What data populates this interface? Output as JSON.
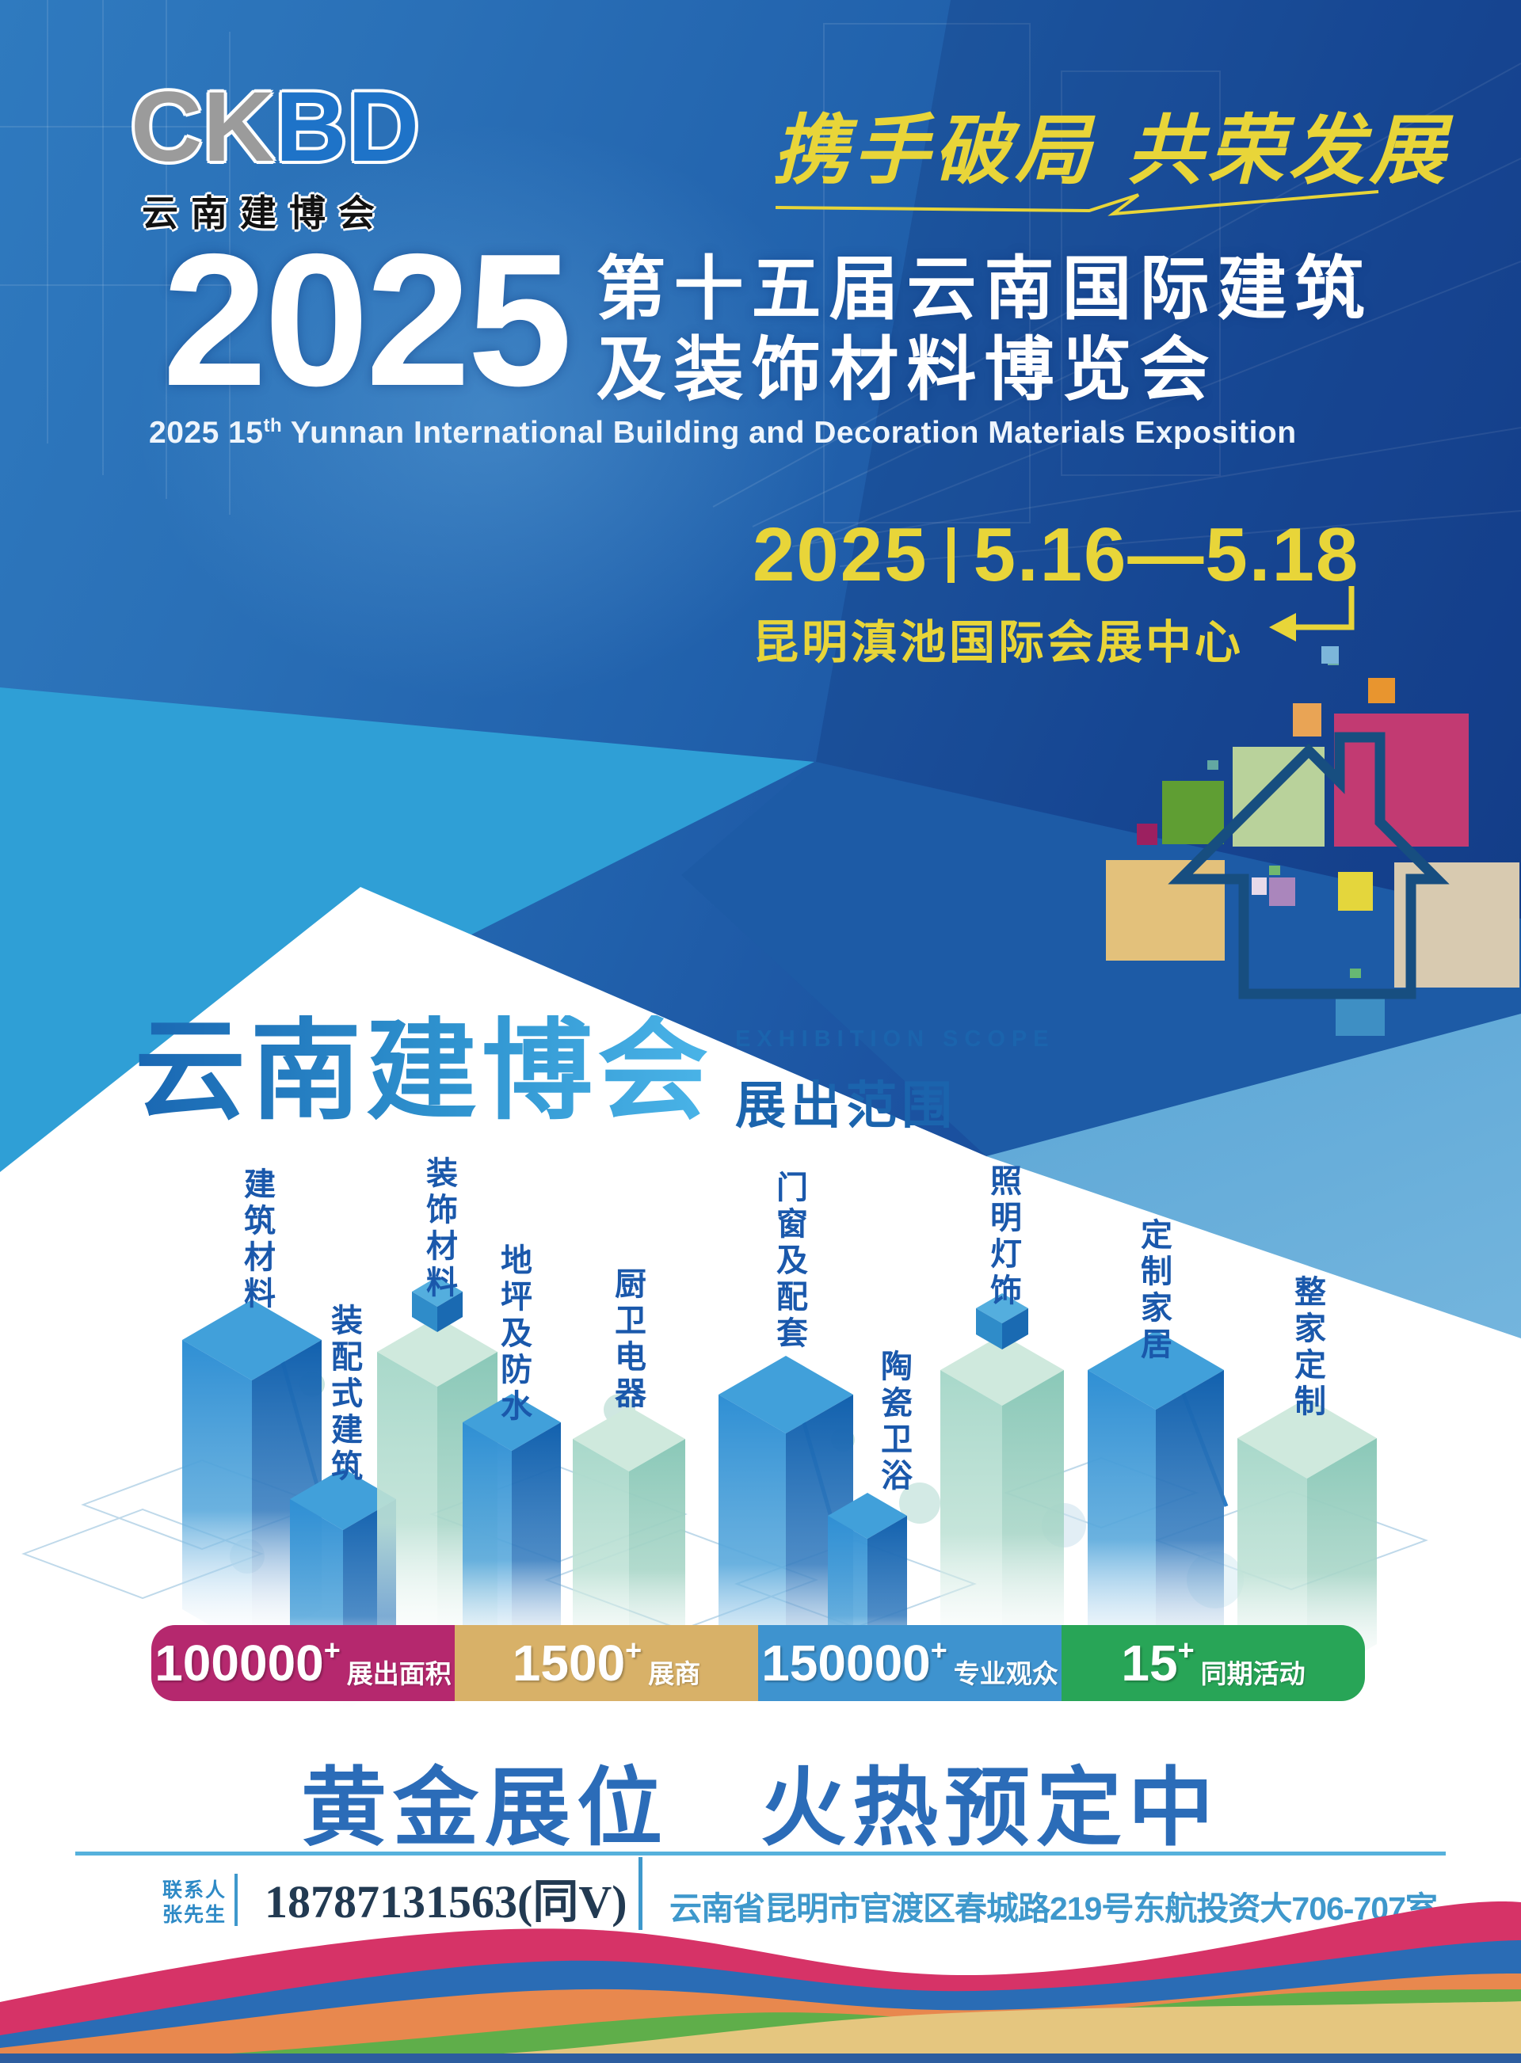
{
  "logo": {
    "text_gray": "CK",
    "text_blue": "BD",
    "subtext": "云南建博会"
  },
  "hero": {
    "slogan": "携手破局 共荣发展",
    "year": "2025",
    "title_cn_line1": "第十五届云南国际建筑",
    "title_cn_line2": "及装饰材料博览会",
    "subtitle_en_prefix": "2025 15",
    "subtitle_en_sup": "th",
    "subtitle_en_rest": "  Yunnan International Building and Decoration Materials Exposition",
    "date_year": "2025",
    "date_range": "5.16—5.18",
    "venue": "昆明滇池国际会展中心",
    "accent_yellow": "#e8d539"
  },
  "scope": {
    "title_cn": "云南建博会",
    "subtitle_en": "EXHIBITION SCOPE",
    "subtitle_cn": "展出范围"
  },
  "exhibition_scope": {
    "categories": [
      {
        "label": "建筑材料",
        "style": "blue",
        "cube": false
      },
      {
        "label": "装配式建筑",
        "style": "blue",
        "cube": false
      },
      {
        "label": "装饰材料",
        "style": "teal",
        "cube": true
      },
      {
        "label": "地坪及防水",
        "style": "blue",
        "cube": false
      },
      {
        "label": "厨卫电器",
        "style": "teal",
        "cube": false
      },
      {
        "label": "门窗及配套",
        "style": "blue",
        "cube": false
      },
      {
        "label": "陶瓷卫浴",
        "style": "blue",
        "cube": false
      },
      {
        "label": "照明灯饰",
        "style": "teal",
        "cube": true
      },
      {
        "label": "定制家居",
        "style": "blue",
        "cube": false
      },
      {
        "label": "整家定制",
        "style": "teal",
        "cube": false
      }
    ]
  },
  "stats": [
    {
      "value": "100000",
      "suffix": "+",
      "label": "展出面积",
      "color": "#b5286e"
    },
    {
      "value": "1500",
      "suffix": "+",
      "label": "展商",
      "color": "#d8b168"
    },
    {
      "value": "150000",
      "suffix": "+",
      "label": "专业观众",
      "color": "#3e93cf"
    },
    {
      "value": "15",
      "suffix": "+",
      "label": "同期活动",
      "color": "#28a557"
    }
  ],
  "booking": {
    "slogan": "黄金展位　火热预定中"
  },
  "contact": {
    "role": "联系人",
    "name": "张先生",
    "phone": "18787131563(同V)",
    "address": "云南省昆明市官渡区春城路219号东航投资大706-707室"
  },
  "colors": {
    "hero_blue": "#1d5ba6",
    "light_blue": "#2f9fd6",
    "label_blue": "#1a58ab",
    "calligraphy_blue": "#2b6cb8"
  }
}
